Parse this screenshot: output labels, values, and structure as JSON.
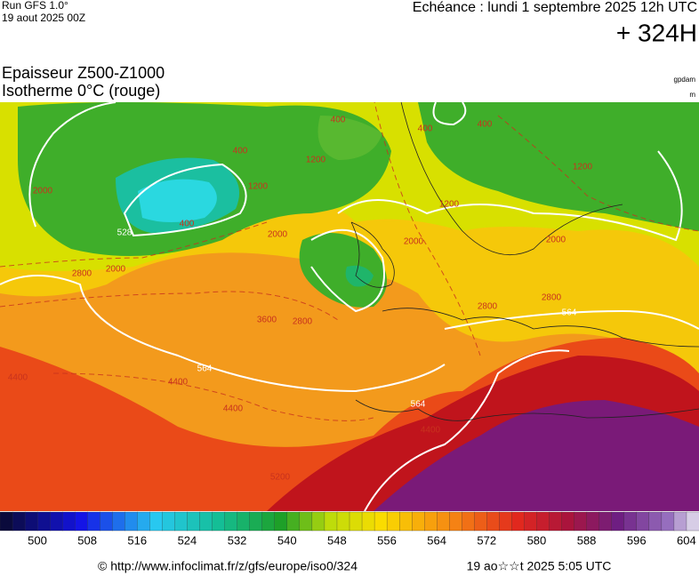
{
  "header": {
    "run": "Run GFS 1.0°",
    "run_date": "19 aout 2025 00Z",
    "valid": "Echéance : lundi 1 septembre 2025 12h UTC",
    "lead": "+ 324H",
    "title_line1": "Epaisseur Z500-Z1000",
    "title_line2": "Isotherme 0°C (rouge)",
    "unit1": "gpdam",
    "unit2": "m"
  },
  "map": {
    "contour_labels": [
      "528",
      "564",
      "564",
      "564",
      "400",
      "400",
      "400",
      "400",
      "1200",
      "1200",
      "1200",
      "2000",
      "2000",
      "2000",
      "2000",
      "2000",
      "2800",
      "2800",
      "2800",
      "2800",
      "3600",
      "4400",
      "4400",
      "4400",
      "4400",
      "5200",
      "400",
      "1200"
    ]
  },
  "colorbar": {
    "labels": [
      "500",
      "508",
      "516",
      "524",
      "532",
      "540",
      "548",
      "556",
      "564",
      "572",
      "580",
      "588",
      "596",
      "604"
    ]
  },
  "footer": {
    "source": "© http://www.infoclimat.fr/z/gfs/europe/iso0/324",
    "generated": "19 ao☆☆t 2025  5:05 UTC"
  }
}
